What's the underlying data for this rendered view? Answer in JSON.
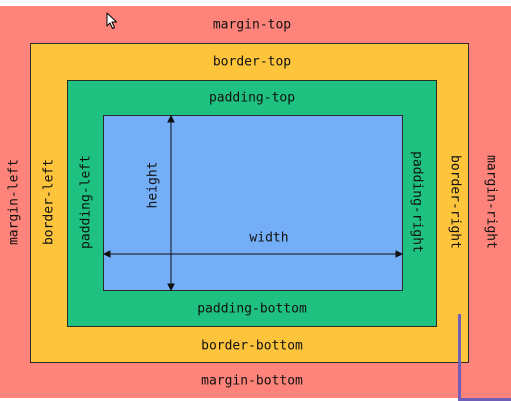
{
  "labels": {
    "margin_top": "margin-top",
    "margin_bottom": "margin-bottom",
    "margin_left": "margin-left",
    "margin_right": "margin-right",
    "border_top": "border-top",
    "border_bottom": "border-bottom",
    "border_left": "border-left",
    "border_right": "border-right",
    "padding_top": "padding-top",
    "padding_bottom": "padding-bottom",
    "padding_left": "padding-left",
    "padding_right": "padding-right",
    "width": "width",
    "height": "height"
  },
  "colors": {
    "margin": "#fe837a",
    "border": "#fdc43c",
    "padding": "#1fc181",
    "content": "#73aef6"
  },
  "icons": {
    "cursor": "mouse-pointer-icon"
  }
}
